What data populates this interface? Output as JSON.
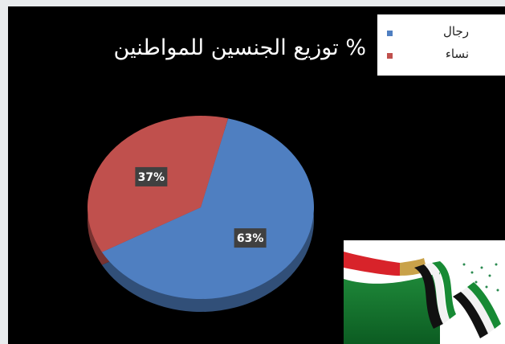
{
  "chart_data": {
    "type": "pie",
    "title": "% توزيع الجنسين للمواطنين",
    "slices": [
      {
        "label": "رجال",
        "value": 63,
        "display": "63%",
        "color": "#4f7fc1"
      },
      {
        "label": "نساء",
        "value": 37,
        "display": "37%",
        "color": "#c0504d"
      }
    ],
    "legend_position": "top-right",
    "style": "3d"
  }
}
